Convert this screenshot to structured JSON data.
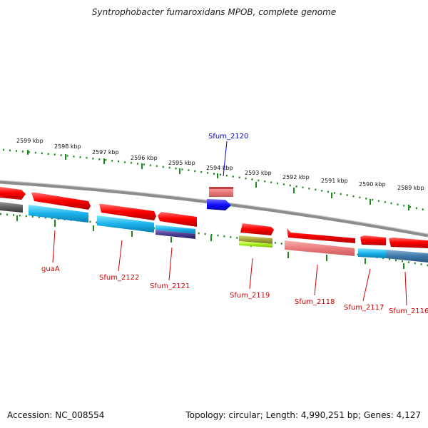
{
  "title": "Syntrophobacter fumaroxidans MPOB, complete genome",
  "footer": {
    "accession": "Accession: NC_008554",
    "summary": "Topology: circular; Length: 4,990,251 bp; Genes: 4,127"
  },
  "colors": {
    "tick": "#1a8a1a",
    "backbone": "#8c8c8c",
    "label_red": "#cc0000",
    "label_blue": "#0000cc"
  },
  "ticks": [
    {
      "label": "2599 kbp"
    },
    {
      "label": "2598 kbp"
    },
    {
      "label": "2597 kbp"
    },
    {
      "label": "2596 kbp"
    },
    {
      "label": "2595 kbp"
    },
    {
      "label": "2594 kbp"
    },
    {
      "label": "2593 kbp"
    },
    {
      "label": "2592 kbp"
    },
    {
      "label": "2591 kbp"
    },
    {
      "label": "2590 kbp"
    },
    {
      "label": "2589 kbp"
    }
  ],
  "gene_labels": [
    {
      "text": "Sfum_2120",
      "color": "blue"
    },
    {
      "text": "guaA",
      "color": "red"
    },
    {
      "text": "Sfum_2122",
      "color": "red"
    },
    {
      "text": "Sfum_2121",
      "color": "red"
    },
    {
      "text": "Sfum_2119",
      "color": "red"
    },
    {
      "text": "Sfum_2118",
      "color": "red"
    },
    {
      "text": "Sfum_2117",
      "color": "red"
    },
    {
      "text": "Sfum_2116",
      "color": "red"
    }
  ]
}
